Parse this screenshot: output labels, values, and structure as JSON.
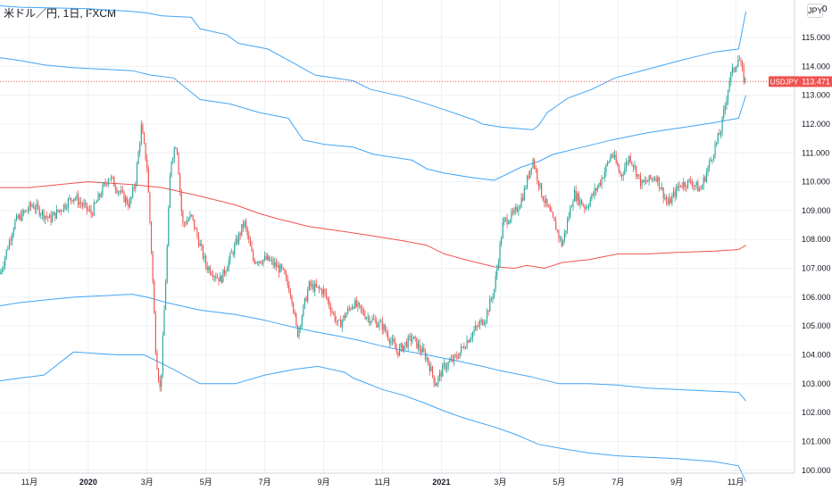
{
  "header": {
    "title": "米ドル／円, 1日, FXCM",
    "currency_button": "JPY",
    "currency_tail": "0"
  },
  "colors": {
    "up": "#26a69a",
    "down": "#ef5350",
    "band_outer": "#42a5f5",
    "band_mid": "#ef5350",
    "grid": "#eef0f3",
    "axis_text": "#131722",
    "price_label_bg": "#ef5350"
  },
  "chart_data": {
    "type": "candlestick",
    "symbol": "USDJPY",
    "last_price": "113.471",
    "last_value": 113.471,
    "ylim": [
      99.9,
      116.3
    ],
    "yticks": [
      "115.000",
      "114.000",
      "113.000",
      "112.000",
      "111.000",
      "110.000",
      "109.000",
      "108.000",
      "107.000",
      "106.000",
      "105.000",
      "104.000",
      "103.000",
      "102.000",
      "101.000",
      "100.000"
    ],
    "yvalues": [
      115,
      114,
      113,
      112,
      111,
      110,
      109,
      108,
      107,
      106,
      105,
      104,
      103,
      102,
      101,
      100
    ],
    "xticks": [
      {
        "label": "11月",
        "t": 0.5
      },
      {
        "label": "2020",
        "t": 2.5,
        "bold": true
      },
      {
        "label": "3月",
        "t": 4.5
      },
      {
        "label": "5月",
        "t": 6.5
      },
      {
        "label": "7月",
        "t": 8.5
      },
      {
        "label": "9月",
        "t": 10.5
      },
      {
        "label": "11月",
        "t": 12.5
      },
      {
        "label": "2021",
        "t": 14.5,
        "bold": true
      },
      {
        "label": "3月",
        "t": 16.5
      },
      {
        "label": "5月",
        "t": 18.5
      },
      {
        "label": "7月",
        "t": 20.5
      },
      {
        "label": "9月",
        "t": 22.5
      },
      {
        "label": "11月",
        "t": 24.5
      }
    ],
    "xlim": [
      -0.5,
      26.5
    ],
    "price_keypoints": [
      [
        -0.5,
        106.8
      ],
      [
        0,
        108.6
      ],
      [
        0.6,
        109.2
      ],
      [
        1.2,
        108.7
      ],
      [
        2,
        109.5
      ],
      [
        2.6,
        108.9
      ],
      [
        3.2,
        110.2
      ],
      [
        3.6,
        109.6
      ],
      [
        3.9,
        109.2
      ],
      [
        4.1,
        110.0
      ],
      [
        4.3,
        111.9
      ],
      [
        4.5,
        110.5
      ],
      [
        4.65,
        107.5
      ],
      [
        4.8,
        104.0
      ],
      [
        4.95,
        102.7
      ],
      [
        5.15,
        107.0
      ],
      [
        5.3,
        110.7
      ],
      [
        5.5,
        111.4
      ],
      [
        5.7,
        108.5
      ],
      [
        6,
        108.8
      ],
      [
        6.5,
        107.1
      ],
      [
        7,
        106.6
      ],
      [
        7.5,
        107.8
      ],
      [
        7.8,
        108.6
      ],
      [
        8.1,
        107.3
      ],
      [
        8.6,
        107.3
      ],
      [
        9.1,
        106.9
      ],
      [
        9.4,
        106.1
      ],
      [
        9.6,
        104.7
      ],
      [
        10,
        106.4
      ],
      [
        10.5,
        106.2
      ],
      [
        11,
        105.0
      ],
      [
        11.5,
        105.8
      ],
      [
        12,
        105.3
      ],
      [
        12.5,
        105.0
      ],
      [
        13,
        104.1
      ],
      [
        13.5,
        104.6
      ],
      [
        14,
        103.9
      ],
      [
        14.3,
        103.0
      ],
      [
        14.6,
        103.6
      ],
      [
        15,
        103.9
      ],
      [
        15.5,
        104.7
      ],
      [
        16,
        105.3
      ],
      [
        16.3,
        106.3
      ],
      [
        16.6,
        108.6
      ],
      [
        17,
        108.9
      ],
      [
        17.3,
        109.6
      ],
      [
        17.6,
        110.8
      ],
      [
        17.9,
        109.6
      ],
      [
        18.4,
        108.4
      ],
      [
        18.6,
        107.8
      ],
      [
        19,
        109.6
      ],
      [
        19.4,
        109.1
      ],
      [
        19.9,
        110.0
      ],
      [
        20.3,
        111.0
      ],
      [
        20.6,
        110.2
      ],
      [
        20.9,
        110.9
      ],
      [
        21.3,
        109.9
      ],
      [
        21.8,
        110.2
      ],
      [
        22.2,
        109.2
      ],
      [
        22.6,
        109.9
      ],
      [
        23,
        110.0
      ],
      [
        23.3,
        109.7
      ],
      [
        23.6,
        110.6
      ],
      [
        24,
        111.8
      ],
      [
        24.3,
        113.6
      ],
      [
        24.6,
        114.3
      ],
      [
        24.8,
        113.5
      ],
      [
        24.85,
        113.471
      ]
    ],
    "candle_count": 520,
    "bands": {
      "upper_outer": [
        [
          -0.5,
          116.1
        ],
        [
          0.2,
          116.05
        ],
        [
          2.5,
          116.0
        ],
        [
          4.0,
          115.9
        ],
        [
          4.5,
          115.85
        ],
        [
          5.0,
          115.75
        ],
        [
          6.0,
          115.7
        ],
        [
          6.3,
          115.3
        ],
        [
          7.2,
          115.1
        ],
        [
          7.6,
          114.8
        ],
        [
          8.6,
          114.6
        ],
        [
          9.5,
          114.1
        ],
        [
          10.2,
          113.7
        ],
        [
          11.5,
          113.5
        ],
        [
          12.1,
          113.2
        ],
        [
          13.2,
          112.95
        ],
        [
          14.0,
          112.7
        ],
        [
          15.6,
          112.15
        ],
        [
          15.9,
          112.0
        ],
        [
          16.5,
          111.9
        ],
        [
          17.6,
          111.8
        ],
        [
          17.8,
          111.95
        ],
        [
          18.1,
          112.4
        ],
        [
          18.8,
          112.9
        ],
        [
          19.6,
          113.2
        ],
        [
          20.4,
          113.6
        ],
        [
          21.5,
          113.9
        ],
        [
          22.6,
          114.2
        ],
        [
          23.8,
          114.5
        ],
        [
          24.6,
          114.6
        ],
        [
          24.85,
          115.9
        ]
      ],
      "upper_inner": [
        [
          -0.5,
          114.3
        ],
        [
          0.2,
          114.2
        ],
        [
          1.0,
          114.05
        ],
        [
          2.0,
          113.95
        ],
        [
          4.0,
          113.85
        ],
        [
          4.6,
          113.7
        ],
        [
          5.4,
          113.6
        ],
        [
          6.3,
          112.85
        ],
        [
          7.3,
          112.7
        ],
        [
          8.3,
          112.4
        ],
        [
          9.3,
          112.2
        ],
        [
          9.8,
          111.45
        ],
        [
          10.5,
          111.3
        ],
        [
          11.5,
          111.2
        ],
        [
          12.2,
          110.95
        ],
        [
          13.5,
          110.75
        ],
        [
          14.0,
          110.45
        ],
        [
          14.6,
          110.3
        ],
        [
          15.5,
          110.15
        ],
        [
          16.3,
          110.05
        ],
        [
          17.2,
          110.5
        ],
        [
          17.8,
          110.7
        ],
        [
          18.3,
          110.95
        ],
        [
          19.3,
          111.2
        ],
        [
          20.3,
          111.45
        ],
        [
          21.5,
          111.7
        ],
        [
          22.5,
          111.85
        ],
        [
          23.8,
          112.05
        ],
        [
          24.3,
          112.15
        ],
        [
          24.6,
          112.2
        ],
        [
          24.85,
          113.0
        ]
      ],
      "mid": [
        [
          -0.5,
          109.8
        ],
        [
          0.5,
          109.8
        ],
        [
          1.5,
          109.9
        ],
        [
          2.5,
          110.0
        ],
        [
          4.0,
          109.9
        ],
        [
          5.0,
          109.8
        ],
        [
          6.3,
          109.5
        ],
        [
          7.5,
          109.2
        ],
        [
          8.3,
          108.9
        ],
        [
          9.0,
          108.7
        ],
        [
          10.0,
          108.45
        ],
        [
          11.0,
          108.3
        ],
        [
          12.0,
          108.15
        ],
        [
          13.2,
          107.95
        ],
        [
          14.0,
          107.8
        ],
        [
          14.6,
          107.5
        ],
        [
          15.5,
          107.25
        ],
        [
          16.3,
          107.05
        ],
        [
          17.0,
          107.0
        ],
        [
          17.4,
          107.1
        ],
        [
          18.0,
          107.0
        ],
        [
          18.6,
          107.2
        ],
        [
          19.5,
          107.3
        ],
        [
          20.5,
          107.5
        ],
        [
          21.5,
          107.5
        ],
        [
          22.5,
          107.55
        ],
        [
          23.8,
          107.6
        ],
        [
          24.6,
          107.65
        ],
        [
          24.85,
          107.8
        ]
      ],
      "lower_inner": [
        [
          -0.5,
          105.7
        ],
        [
          0.1,
          105.8
        ],
        [
          1.0,
          105.9
        ],
        [
          2.0,
          106.0
        ],
        [
          4.0,
          106.1
        ],
        [
          4.5,
          106.0
        ],
        [
          5.2,
          105.8
        ],
        [
          6.3,
          105.55
        ],
        [
          7.5,
          105.4
        ],
        [
          8.5,
          105.2
        ],
        [
          9.5,
          104.95
        ],
        [
          10.2,
          104.8
        ],
        [
          11.0,
          104.65
        ],
        [
          11.7,
          104.5
        ],
        [
          12.5,
          104.3
        ],
        [
          13.2,
          104.15
        ],
        [
          14.0,
          104.0
        ],
        [
          15.0,
          103.8
        ],
        [
          15.9,
          103.6
        ],
        [
          16.5,
          103.45
        ],
        [
          17.5,
          103.25
        ],
        [
          18.5,
          103.0
        ],
        [
          19.5,
          103.0
        ],
        [
          20.5,
          102.95
        ],
        [
          21.5,
          102.85
        ],
        [
          22.5,
          102.8
        ],
        [
          23.5,
          102.75
        ],
        [
          24.6,
          102.7
        ],
        [
          24.85,
          102.4
        ]
      ],
      "lower_outer": [
        [
          -0.5,
          103.1
        ],
        [
          0.2,
          103.2
        ],
        [
          1.0,
          103.3
        ],
        [
          2.0,
          104.1
        ],
        [
          3.5,
          104.0
        ],
        [
          4.4,
          104.0
        ],
        [
          5.2,
          103.6
        ],
        [
          6.3,
          103.0
        ],
        [
          7.5,
          103.0
        ],
        [
          8.5,
          103.3
        ],
        [
          9.5,
          103.5
        ],
        [
          10.3,
          103.6
        ],
        [
          11.2,
          103.4
        ],
        [
          11.5,
          103.2
        ],
        [
          12.5,
          102.8
        ],
        [
          13.2,
          102.6
        ],
        [
          14.0,
          102.3
        ],
        [
          14.6,
          102.05
        ],
        [
          15.3,
          101.8
        ],
        [
          16.3,
          101.5
        ],
        [
          17.0,
          101.25
        ],
        [
          17.8,
          100.9
        ],
        [
          18.6,
          100.75
        ],
        [
          19.5,
          100.6
        ],
        [
          20.5,
          100.5
        ],
        [
          21.5,
          100.45
        ],
        [
          22.5,
          100.4
        ],
        [
          23.8,
          100.3
        ],
        [
          24.6,
          100.15
        ],
        [
          24.85,
          99.6
        ]
      ]
    }
  }
}
